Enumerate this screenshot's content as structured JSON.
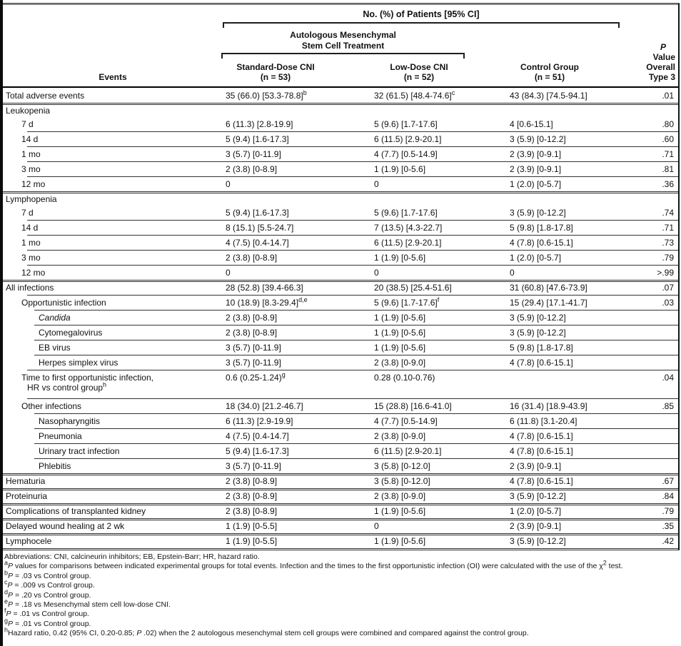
{
  "header": {
    "spanner1": "No. (%) of Patients [95% CI]",
    "spanner2_line1": "Autologous Mesenchymal",
    "spanner2_line2": "Stem Cell Treatment",
    "events": "Events",
    "col1_line1": "Standard-Dose CNI",
    "col1_line2": "(n = 53)",
    "col2_line1": "Low-Dose CNI",
    "col2_line2": "(n = 52)",
    "col3_line1": "Control Group",
    "col3_line2": "(n = 51)",
    "p_line1": "P",
    "p_line2": "Value",
    "p_line3": "Overall",
    "p_line4": "Type 3"
  },
  "rows": [
    {
      "label": "Total adverse events",
      "indent": 0,
      "sep": "none",
      "c1": "35 (66.0) [53.3-78.8]",
      "c1_sup": "b",
      "c2": "32 (61.5) [48.4-74.6]",
      "c2_sup": "c",
      "c3": "43 (84.3) [74.5-94.1]",
      "p": ".01"
    },
    {
      "label": "Leukopenia",
      "indent": 0,
      "section": true,
      "sep": "full"
    },
    {
      "label": "7 d",
      "indent": 1,
      "sep": "none",
      "c1": "6 (11.3) [2.8-19.9]",
      "c2": "5 (9.6) [1.7-17.6]",
      "c3": "4 [0.6-15.1]",
      "p": ".80"
    },
    {
      "label": "14 d",
      "indent": 1,
      "sep": "minor1",
      "c1": "5 (9.4) [1.6-17.3]",
      "c2": "6 (11.5) [2.9-20.1]",
      "c3": "3 (5.9) [0-12.2]",
      "p": ".60"
    },
    {
      "label": "1 mo",
      "indent": 1,
      "sep": "minor1",
      "c1": "3 (5.7) [0-11.9]",
      "c2": "4 (7.7) [0.5-14.9]",
      "c3": "2 (3.9) [0-9.1]",
      "p": ".71"
    },
    {
      "label": "3 mo",
      "indent": 1,
      "sep": "minor1",
      "c1": "2 (3.8) [0-8.9]",
      "c2": "1 (1.9) [0-5.6]",
      "c3": "2 (3.9) [0-9.1]",
      "p": ".81"
    },
    {
      "label": "12 mo",
      "indent": 1,
      "sep": "minor1",
      "c1": "0",
      "c2": "0",
      "c3": "1 (2.0) [0-5.7]",
      "p": ".36"
    },
    {
      "label": "Lymphopenia",
      "indent": 0,
      "section": true,
      "sep": "full"
    },
    {
      "label": "7 d",
      "indent": 1,
      "sep": "none",
      "c1": "5 (9.4) [1.6-17.3]",
      "c2": "5 (9.6) [1.7-17.6]",
      "c3": "3 (5.9) [0-12.2]",
      "p": ".74"
    },
    {
      "label": "14 d",
      "indent": 1,
      "sep": "minor1",
      "c1": "8 (15.1) [5.5-24.7]",
      "c2": "7 (13.5) [4.3-22.7]",
      "c3": "5 (9.8) [1.8-17.8]",
      "p": ".71"
    },
    {
      "label": "1 mo",
      "indent": 1,
      "sep": "minor1",
      "c1": "4 (7.5) [0.4-14.7]",
      "c2": "6 (11.5) [2.9-20.1]",
      "c3": "4 (7.8) [0.6-15.1]",
      "p": ".73"
    },
    {
      "label": "3 mo",
      "indent": 1,
      "sep": "minor1",
      "c1": "2 (3.8) [0-8.9]",
      "c2": "1 (1.9) [0-5.6]",
      "c3": "1 (2.0) [0-5.7]",
      "p": ".79"
    },
    {
      "label": "12 mo",
      "indent": 1,
      "sep": "minor1",
      "c1": "0",
      "c2": "0",
      "c3": "0",
      "p": ">.99"
    },
    {
      "label": "All infections",
      "indent": 0,
      "sep": "full",
      "c1": "28 (52.8) [39.4-66.3]",
      "c2": "20 (38.5) [25.4-51.6]",
      "c3": "31 (60.8) [47.6-73.9]",
      "p": ".07"
    },
    {
      "label": "Opportunistic infection",
      "indent": 1,
      "sep": "minor1",
      "c1": "10 (18.9) [8.3-29.4]",
      "c1_sup": "d,e",
      "c2": "5 (9.6) [1.7-17.6]",
      "c2_sup": "f",
      "c3": "15 (29.4) [17.1-41.7]",
      "p": ".03"
    },
    {
      "label": "Candida",
      "indent": 2,
      "italic": true,
      "sep": "minor2",
      "c1": "2 (3.8) [0-8.9]",
      "c2": "1 (1.9) [0-5.6]",
      "c3": "3 (5.9) [0-12.2]",
      "p": ""
    },
    {
      "label": "Cytomegalovirus",
      "indent": 2,
      "sep": "minor2",
      "c1": "2 (3.8) [0-8.9]",
      "c2": "1 (1.9) [0-5.6]",
      "c3": "3 (5.9) [0-12.2]",
      "p": ""
    },
    {
      "label": "EB virus",
      "indent": 2,
      "sep": "minor2",
      "c1": "3 (5.7) [0-11.9]",
      "c2": "1 (1.9) [0-5.6]",
      "c3": "5 (9.8) [1.8-17.8]",
      "p": ""
    },
    {
      "label": "Herpes simplex virus",
      "indent": 2,
      "sep": "minor2",
      "c1": "3 (5.7) [0-11.9]",
      "c2": "2 (3.8) [0-9.0]",
      "c3": "4 (7.8) [0.6-15.1]",
      "p": ""
    },
    {
      "label": "Time to first opportunistic infection,",
      "label2": "HR vs control group",
      "label2_sup": "h",
      "indent": 1,
      "twoline": true,
      "sep": "minor1",
      "c1": "0.6 (0.25-1.24)",
      "c1_sup": "g",
      "c2": "0.28 (0.10-0.76)",
      "c3": "",
      "p": ".04"
    },
    {
      "label": "Other infections",
      "indent": 1,
      "sep": "minor1",
      "c1": "18 (34.0) [21.2-46.7]",
      "c2": "15 (28.8) [16.6-41.0]",
      "c3": "16 (31.4) [18.9-43.9]",
      "p": ".85"
    },
    {
      "label": "Nasopharyngitis",
      "indent": 2,
      "sep": "minor2",
      "c1": "6 (11.3) [2.9-19.9]",
      "c2": "4 (7.7) [0.5-14.9]",
      "c3": "6 (11.8) [3.1-20.4]",
      "p": ""
    },
    {
      "label": "Pneumonia",
      "indent": 2,
      "sep": "minor2",
      "c1": "4 (7.5) [0.4-14.7]",
      "c2": "2 (3.8) [0-9.0]",
      "c3": "4 (7.8) [0.6-15.1]",
      "p": ""
    },
    {
      "label": "Urinary tract infection",
      "indent": 2,
      "sep": "minor2",
      "c1": "5 (9.4) [1.6-17.3]",
      "c2": "6 (11.5) [2.9-20.1]",
      "c3": "4 (7.8) [0.6-15.1]",
      "p": ""
    },
    {
      "label": "Phlebitis",
      "indent": 2,
      "sep": "minor2",
      "c1": "3 (5.7) [0-11.9]",
      "c2": "3 (5.8) [0-12.0]",
      "c3": "2 (3.9) [0-9.1]",
      "p": ""
    },
    {
      "label": "Hematuria",
      "indent": 0,
      "sep": "full",
      "c1": "2 (3.8) [0-8.9]",
      "c2": "3 (5.8) [0-12.0]",
      "c3": "4 (7.8) [0.6-15.1]",
      "p": ".67"
    },
    {
      "label": "Proteinuria",
      "indent": 0,
      "sep": "full",
      "c1": "2 (3.8) [0-8.9]",
      "c2": "2 (3.8) [0-9.0]",
      "c3": "3 (5.9) [0-12.2]",
      "p": ".84"
    },
    {
      "label": "Complications of transplanted kidney",
      "indent": 0,
      "sep": "full",
      "c1": "2 (3.8) [0-8.9]",
      "c2": "1 (1.9) [0-5.6]",
      "c3": "1 (2.0) [0-5.7]",
      "p": ".79"
    },
    {
      "label": "Delayed wound healing at 2 wk",
      "indent": 0,
      "sep": "full",
      "c1": "1 (1.9) [0-5.5]",
      "c2": "0",
      "c3": "2 (3.9) [0-9.1]",
      "p": ".35"
    },
    {
      "label": "Lymphocele",
      "indent": 0,
      "sep": "full",
      "c1": "1 (1.9) [0-5.5]",
      "c2": "1 (1.9) [0-5.6]",
      "c3": "3 (5.9) [0-12.2]",
      "p": ".42"
    }
  ],
  "footnotes": [
    {
      "sup": "",
      "text": "Abbreviations: CNI, calcineurin inhibitors; EB, Epstein-Barr; HR, hazard ratio."
    },
    {
      "sup": "a",
      "text": "P values for comparisons between indicated experimental groups for total events. Infection and the times to the first opportunistic infection (OI) were calculated with the use of the χ2 test."
    },
    {
      "sup": "b",
      "text": "P = .03 vs Control group."
    },
    {
      "sup": "c",
      "text": "P = .009 vs Control group."
    },
    {
      "sup": "d",
      "text": "P = .20 vs Control group."
    },
    {
      "sup": "e",
      "text": "P = .18 vs Mesenchymal stem cell low-dose CNI."
    },
    {
      "sup": "f",
      "text": "P = .01 vs Control group."
    },
    {
      "sup": "g",
      "text": "P = .01 vs Control group."
    },
    {
      "sup": "h",
      "text": "Hazard ratio, 0.42 (95% CI, 0.20-0.85; P .02) when the 2 autologous mesenchymal stem cell groups were combined and compared against the control group."
    }
  ]
}
